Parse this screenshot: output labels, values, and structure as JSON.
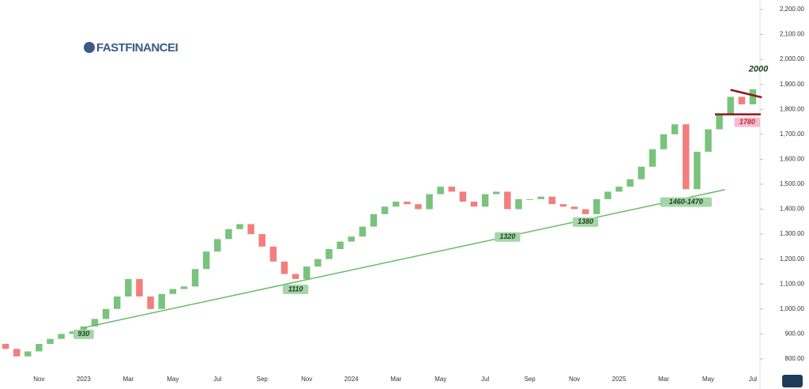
{
  "brand": "FASTFINANCEI",
  "chart_data": {
    "type": "candlestick",
    "categories": [
      null,
      null,
      null,
      "Nov",
      null,
      null,
      null,
      "2023",
      null,
      null,
      null,
      "Mar",
      null,
      null,
      null,
      "May",
      null,
      null,
      null,
      "Jul",
      null,
      null,
      null,
      "Sep",
      null,
      null,
      null,
      "Nov",
      null,
      null,
      null,
      "2024",
      null,
      null,
      null,
      "Mar",
      null,
      null,
      null,
      "May",
      null,
      null,
      null,
      "Jul",
      null,
      null,
      null,
      "Sep",
      null,
      null,
      null,
      "Nov",
      null,
      null,
      null,
      "2025",
      null,
      null,
      null,
      "Mar",
      null,
      null,
      null,
      "May",
      null,
      null,
      null,
      "Jul"
    ],
    "open": [
      860,
      840,
      810,
      830,
      860,
      880,
      900,
      910,
      930,
      960,
      1000,
      1050,
      1120,
      1050,
      1000,
      1060,
      1080,
      1090,
      1160,
      1230,
      1280,
      1320,
      1340,
      1300,
      1250,
      1190,
      1140,
      1120,
      1170,
      1200,
      1240,
      1270,
      1290,
      1330,
      1380,
      1410,
      1430,
      1420,
      1400,
      1460,
      1490,
      1470,
      1430,
      1410,
      1460,
      1470,
      1400,
      1440,
      1440,
      1450,
      1420,
      1410,
      1400,
      1380,
      1440,
      1470,
      1490,
      1520,
      1570,
      1640,
      1700,
      1740,
      1480,
      1630,
      1720,
      1780,
      1850,
      1820
    ],
    "close": [
      840,
      810,
      830,
      860,
      880,
      900,
      910,
      930,
      960,
      1000,
      1050,
      1120,
      1050,
      1000,
      1060,
      1080,
      1090,
      1160,
      1230,
      1280,
      1320,
      1340,
      1300,
      1250,
      1190,
      1140,
      1120,
      1170,
      1200,
      1240,
      1270,
      1290,
      1330,
      1380,
      1410,
      1430,
      1420,
      1400,
      1460,
      1490,
      1470,
      1430,
      1410,
      1460,
      1470,
      1400,
      1440,
      1440,
      1450,
      1420,
      1410,
      1400,
      1380,
      1440,
      1470,
      1490,
      1520,
      1570,
      1640,
      1700,
      1740,
      1480,
      1630,
      1720,
      1780,
      1850,
      1820,
      1880
    ],
    "up_color": "#4caf50",
    "down_color": "#ef5350",
    "ylim": [
      749,
      2238
    ],
    "yticks": [
      {
        "value": 800,
        "label": "800.00"
      },
      {
        "value": 900,
        "label": "900.00"
      },
      {
        "value": 1000,
        "label": "1,000.00"
      },
      {
        "value": 1100,
        "label": "1,100.00"
      },
      {
        "value": 1200,
        "label": "1,200.00"
      },
      {
        "value": 1300,
        "label": "1,300.00"
      },
      {
        "value": 1400,
        "label": "1,400.00"
      },
      {
        "value": 1500,
        "label": "1,500.00"
      },
      {
        "value": 1600,
        "label": "1,600.00"
      },
      {
        "value": 1700,
        "label": "1,700.00"
      },
      {
        "value": 1800,
        "label": "1,800.00"
      },
      {
        "value": 1900,
        "label": "1,900.00"
      },
      {
        "value": 2000,
        "label": "2,000.00"
      },
      {
        "value": 2100,
        "label": "2,100.00"
      },
      {
        "value": 2200,
        "label": "2,200.00"
      }
    ],
    "lines": [
      {
        "color": "#66bb6a",
        "from": [
          7,
          925
        ],
        "to": [
          64.5,
          1478
        ]
      },
      {
        "color": "#8b1a1a",
        "from": [
          65,
          1878
        ],
        "to": [
          67.8,
          1848
        ]
      },
      {
        "color": "#8b1a1a",
        "from": [
          63.6,
          1780
        ],
        "to": [
          67.7,
          1780
        ]
      }
    ],
    "annotations": [
      {
        "text": "930",
        "x": 7,
        "y": 930,
        "color": "#a5d6a7"
      },
      {
        "text": "1110",
        "x": 26,
        "y": 1110,
        "color": "#a5d6a7"
      },
      {
        "text": "1320",
        "x": 45,
        "y": 1320,
        "color": "#a5d6a7"
      },
      {
        "text": "1380",
        "x": 52,
        "y": 1380,
        "color": "#a5d6a7"
      },
      {
        "text": "1460-1470",
        "x": 61,
        "y": 1460,
        "color": "#a5d6a7"
      },
      {
        "text": "1780",
        "x": 66.5,
        "y": 1780,
        "color": "#f8bbd0"
      },
      {
        "text": "2000",
        "x": 67.5,
        "y": 1960,
        "color": "none"
      }
    ]
  }
}
